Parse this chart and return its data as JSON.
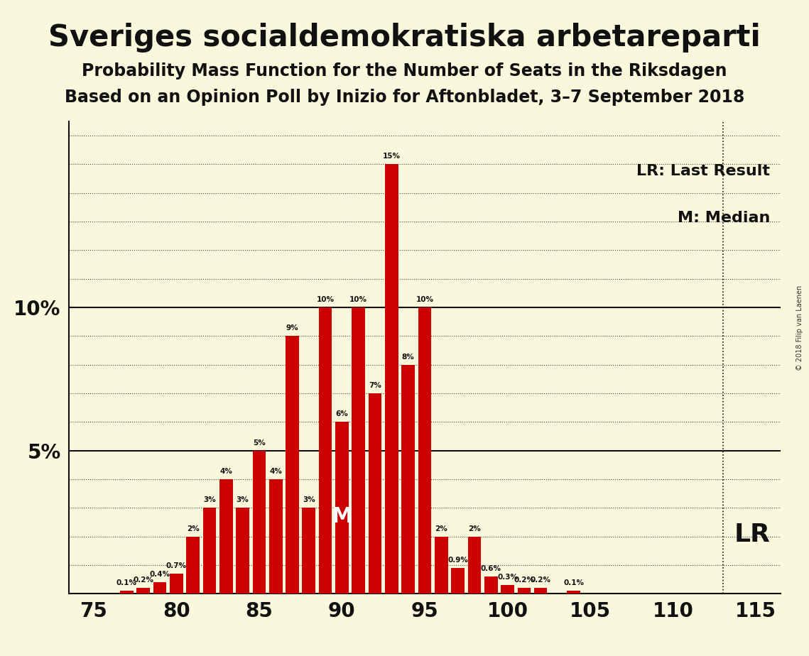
{
  "title": "Sveriges socialdemokratiska arbetareparti",
  "subtitle1": "Probability Mass Function for the Number of Seats in the Riksdagen",
  "subtitle2": "Based on an Opinion Poll by Inizio for Aftonbladet, 3–7 September 2018",
  "copyright": "© 2018 Filip van Laenen",
  "legend_lr": "LR: Last Result",
  "legend_m": "M: Median",
  "lr_label": "LR",
  "m_label": "M",
  "background_color": "#FAF8DC",
  "bar_color": "#CC0000",
  "lr_seat": 113,
  "median_seat": 90,
  "seats": [
    75,
    76,
    77,
    78,
    79,
    80,
    81,
    82,
    83,
    84,
    85,
    86,
    87,
    88,
    89,
    90,
    91,
    92,
    93,
    94,
    95,
    96,
    97,
    98,
    99,
    100,
    101,
    102,
    103,
    104,
    105,
    106,
    107,
    108,
    109,
    110,
    111,
    112,
    113,
    114,
    115
  ],
  "probabilities": [
    0.0,
    0.0,
    0.1,
    0.2,
    0.4,
    0.7,
    2.0,
    3.0,
    4.0,
    3.0,
    5.0,
    4.0,
    9.0,
    3.0,
    10.0,
    6.0,
    10.0,
    7.0,
    15.0,
    8.0,
    10.0,
    2.0,
    0.9,
    2.0,
    0.6,
    0.3,
    0.2,
    0.2,
    0.0,
    0.1,
    0.0,
    0.0,
    0.0,
    0.0,
    0.0,
    0.0,
    0.0,
    0.0,
    0.0,
    0.0,
    0.0
  ],
  "ylim": [
    0,
    16.5
  ],
  "xlim": [
    73.5,
    116.5
  ],
  "xticks": [
    75,
    80,
    85,
    90,
    95,
    100,
    105,
    110,
    115
  ],
  "solid_hlines": [
    5.0,
    10.0
  ],
  "dotted_hlines": [
    1.0,
    2.0,
    3.0,
    4.0,
    6.0,
    7.0,
    8.0,
    9.0,
    11.0,
    12.0,
    13.0,
    14.0,
    15.0,
    16.0
  ],
  "ytick_positions": [
    5.0,
    10.0
  ],
  "ytick_labels": [
    "5%",
    "10%"
  ]
}
